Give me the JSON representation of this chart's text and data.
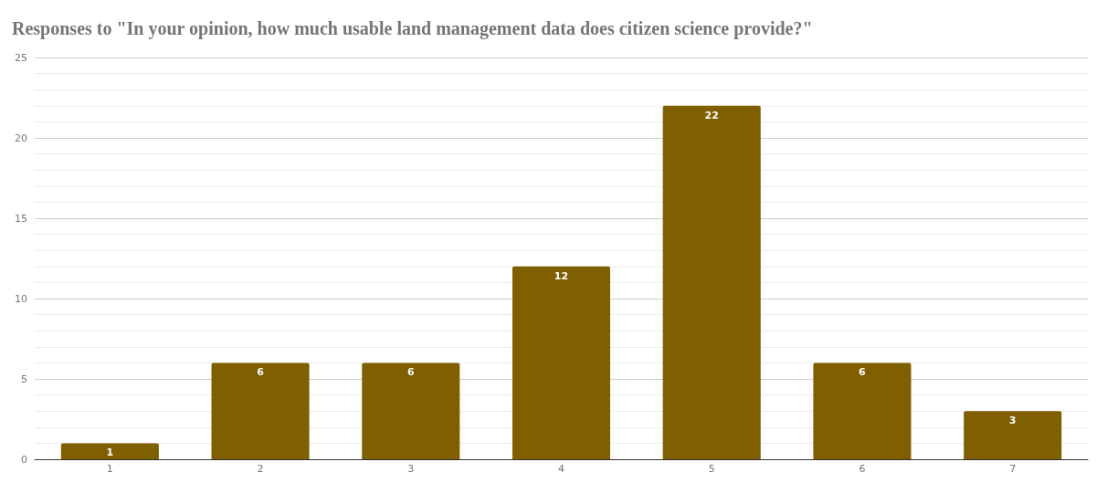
{
  "chart_data": {
    "type": "bar",
    "title": "Responses to \"In your opinion, how much usable land management data does citizen science provide?\"",
    "categories": [
      "1",
      "2",
      "3",
      "4",
      "5",
      "6",
      "7"
    ],
    "values": [
      1,
      6,
      6,
      12,
      22,
      6,
      3
    ],
    "color": "#7f5f00",
    "ylim": [
      0,
      25
    ],
    "yticks": [
      0,
      5,
      10,
      15,
      20,
      25
    ],
    "grid": "y",
    "data_labels": true
  }
}
